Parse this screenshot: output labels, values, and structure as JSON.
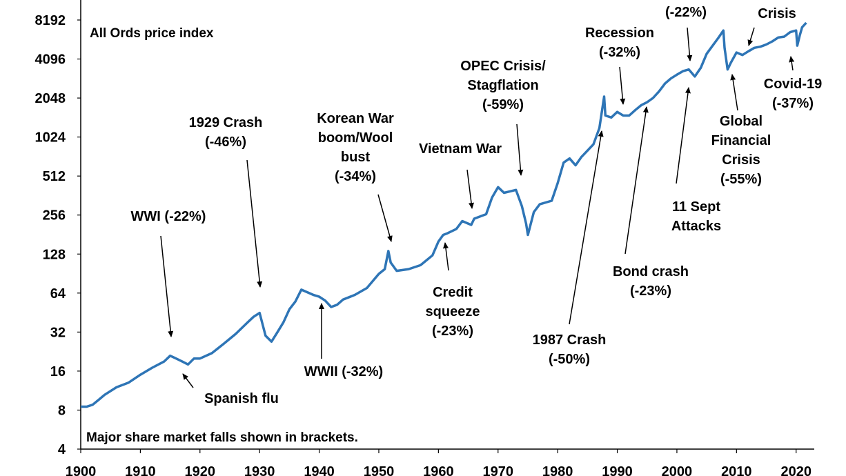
{
  "chart_data": {
    "type": "line",
    "title": "",
    "xlabel": "",
    "ylabel": "",
    "y_scale": "log2",
    "xlim": [
      1900,
      2022
    ],
    "ylim": [
      4,
      8192
    ],
    "grid": false,
    "legend": "none",
    "line_color": "#2e75b6",
    "inset_label": "All Ords price index",
    "footnote": "Major share market falls shown in brackets.",
    "y_ticks": [
      "8192",
      "4096",
      "2048",
      "1024",
      "512",
      "256",
      "128",
      "64",
      "32",
      "16",
      "8",
      "4"
    ],
    "x_ticks": [
      "1900",
      "1910",
      "1920",
      "1930",
      "1940",
      "1950",
      "1960",
      "1970",
      "1980",
      "1990",
      "2000",
      "2010",
      "2020"
    ],
    "series": [
      {
        "x": [
          1900,
          1901,
          1902,
          1903,
          1904,
          1906,
          1908,
          1910,
          1912,
          1914,
          1915,
          1916,
          1917,
          1918,
          1919,
          1920,
          1922,
          1924,
          1926,
          1928,
          1929,
          1930,
          1931,
          1932,
          1933,
          1934,
          1935,
          1936,
          1937,
          1938,
          1939,
          1940,
          1941,
          1942,
          1943,
          1944,
          1946,
          1948,
          1950,
          1951,
          1951.6,
          1952,
          1953,
          1955,
          1957,
          1959,
          1960,
          1960.8,
          1961.5,
          1963,
          1964,
          1965.5,
          1966,
          1968,
          1969,
          1970,
          1971,
          1972,
          1973,
          1974,
          1974.7,
          1975,
          1976,
          1977,
          1979,
          1980,
          1981,
          1982,
          1983,
          1984,
          1986,
          1987,
          1987.8,
          1988,
          1989,
          1990,
          1991,
          1992,
          1993,
          1994,
          1995,
          1996,
          1997,
          1998,
          1999,
          2000,
          2001,
          2002,
          2003,
          2004,
          2005,
          2006,
          2007,
          2007.8,
          2008,
          2008.5,
          2009,
          2010,
          2011,
          2012,
          2013,
          2014,
          2015,
          2016,
          2017,
          2018,
          2019,
          2020,
          2020.2,
          2020.6,
          2021,
          2021.7
        ],
        "y": [
          8.5,
          8.5,
          8.8,
          9.6,
          10.5,
          12,
          13,
          15,
          17,
          19,
          21,
          20,
          19,
          18,
          20,
          20,
          22,
          26,
          31,
          38,
          42,
          45,
          30,
          27,
          32,
          38,
          48,
          55,
          68,
          65,
          62,
          60,
          56,
          50,
          52,
          57,
          62,
          70,
          90,
          98,
          135,
          110,
          95,
          98,
          105,
          125,
          160,
          180,
          185,
          200,
          230,
          215,
          240,
          260,
          350,
          420,
          380,
          390,
          400,
          300,
          220,
          180,
          270,
          310,
          330,
          450,
          650,
          700,
          620,
          720,
          900,
          1200,
          2100,
          1500,
          1450,
          1600,
          1500,
          1500,
          1650,
          1800,
          1900,
          2050,
          2300,
          2650,
          2900,
          3100,
          3300,
          3400,
          3000,
          3500,
          4500,
          5200,
          6000,
          6800,
          5000,
          3400,
          3800,
          4600,
          4400,
          4700,
          5000,
          5100,
          5300,
          5600,
          6000,
          6100,
          6600,
          6800,
          5200,
          6200,
          7200,
          7800
        ]
      }
    ],
    "annotations": [
      {
        "lines": [
          "WWI (-22%)"
        ]
      },
      {
        "lines": [
          "Spanish flu"
        ]
      },
      {
        "lines": [
          "1929 Crash",
          "(-46%)"
        ]
      },
      {
        "lines": [
          "WWII (-32%)"
        ]
      },
      {
        "lines": [
          "Korean War",
          "boom/Wool",
          "bust",
          "(-34%)"
        ]
      },
      {
        "lines": [
          "Credit",
          "squeeze",
          "(-23%)"
        ]
      },
      {
        "lines": [
          "Vietnam War"
        ]
      },
      {
        "lines": [
          "OPEC Crisis/",
          "Stagflation",
          "(-59%)"
        ]
      },
      {
        "lines": [
          "1987 Crash",
          "(-50%)"
        ]
      },
      {
        "lines": [
          "Recession",
          "(-32%)"
        ]
      },
      {
        "lines": [
          "Bond crash",
          "(-23%)"
        ]
      },
      {
        "lines": [
          "11 Sept",
          "Attacks"
        ]
      },
      {
        "lines": [
          "(-22%)"
        ]
      },
      {
        "lines": [
          "Global",
          "Financial",
          "Crisis",
          "(-55%)"
        ]
      },
      {
        "lines": [
          "Crisis"
        ]
      },
      {
        "lines": [
          "Covid-19",
          "(-37%)"
        ]
      }
    ]
  }
}
